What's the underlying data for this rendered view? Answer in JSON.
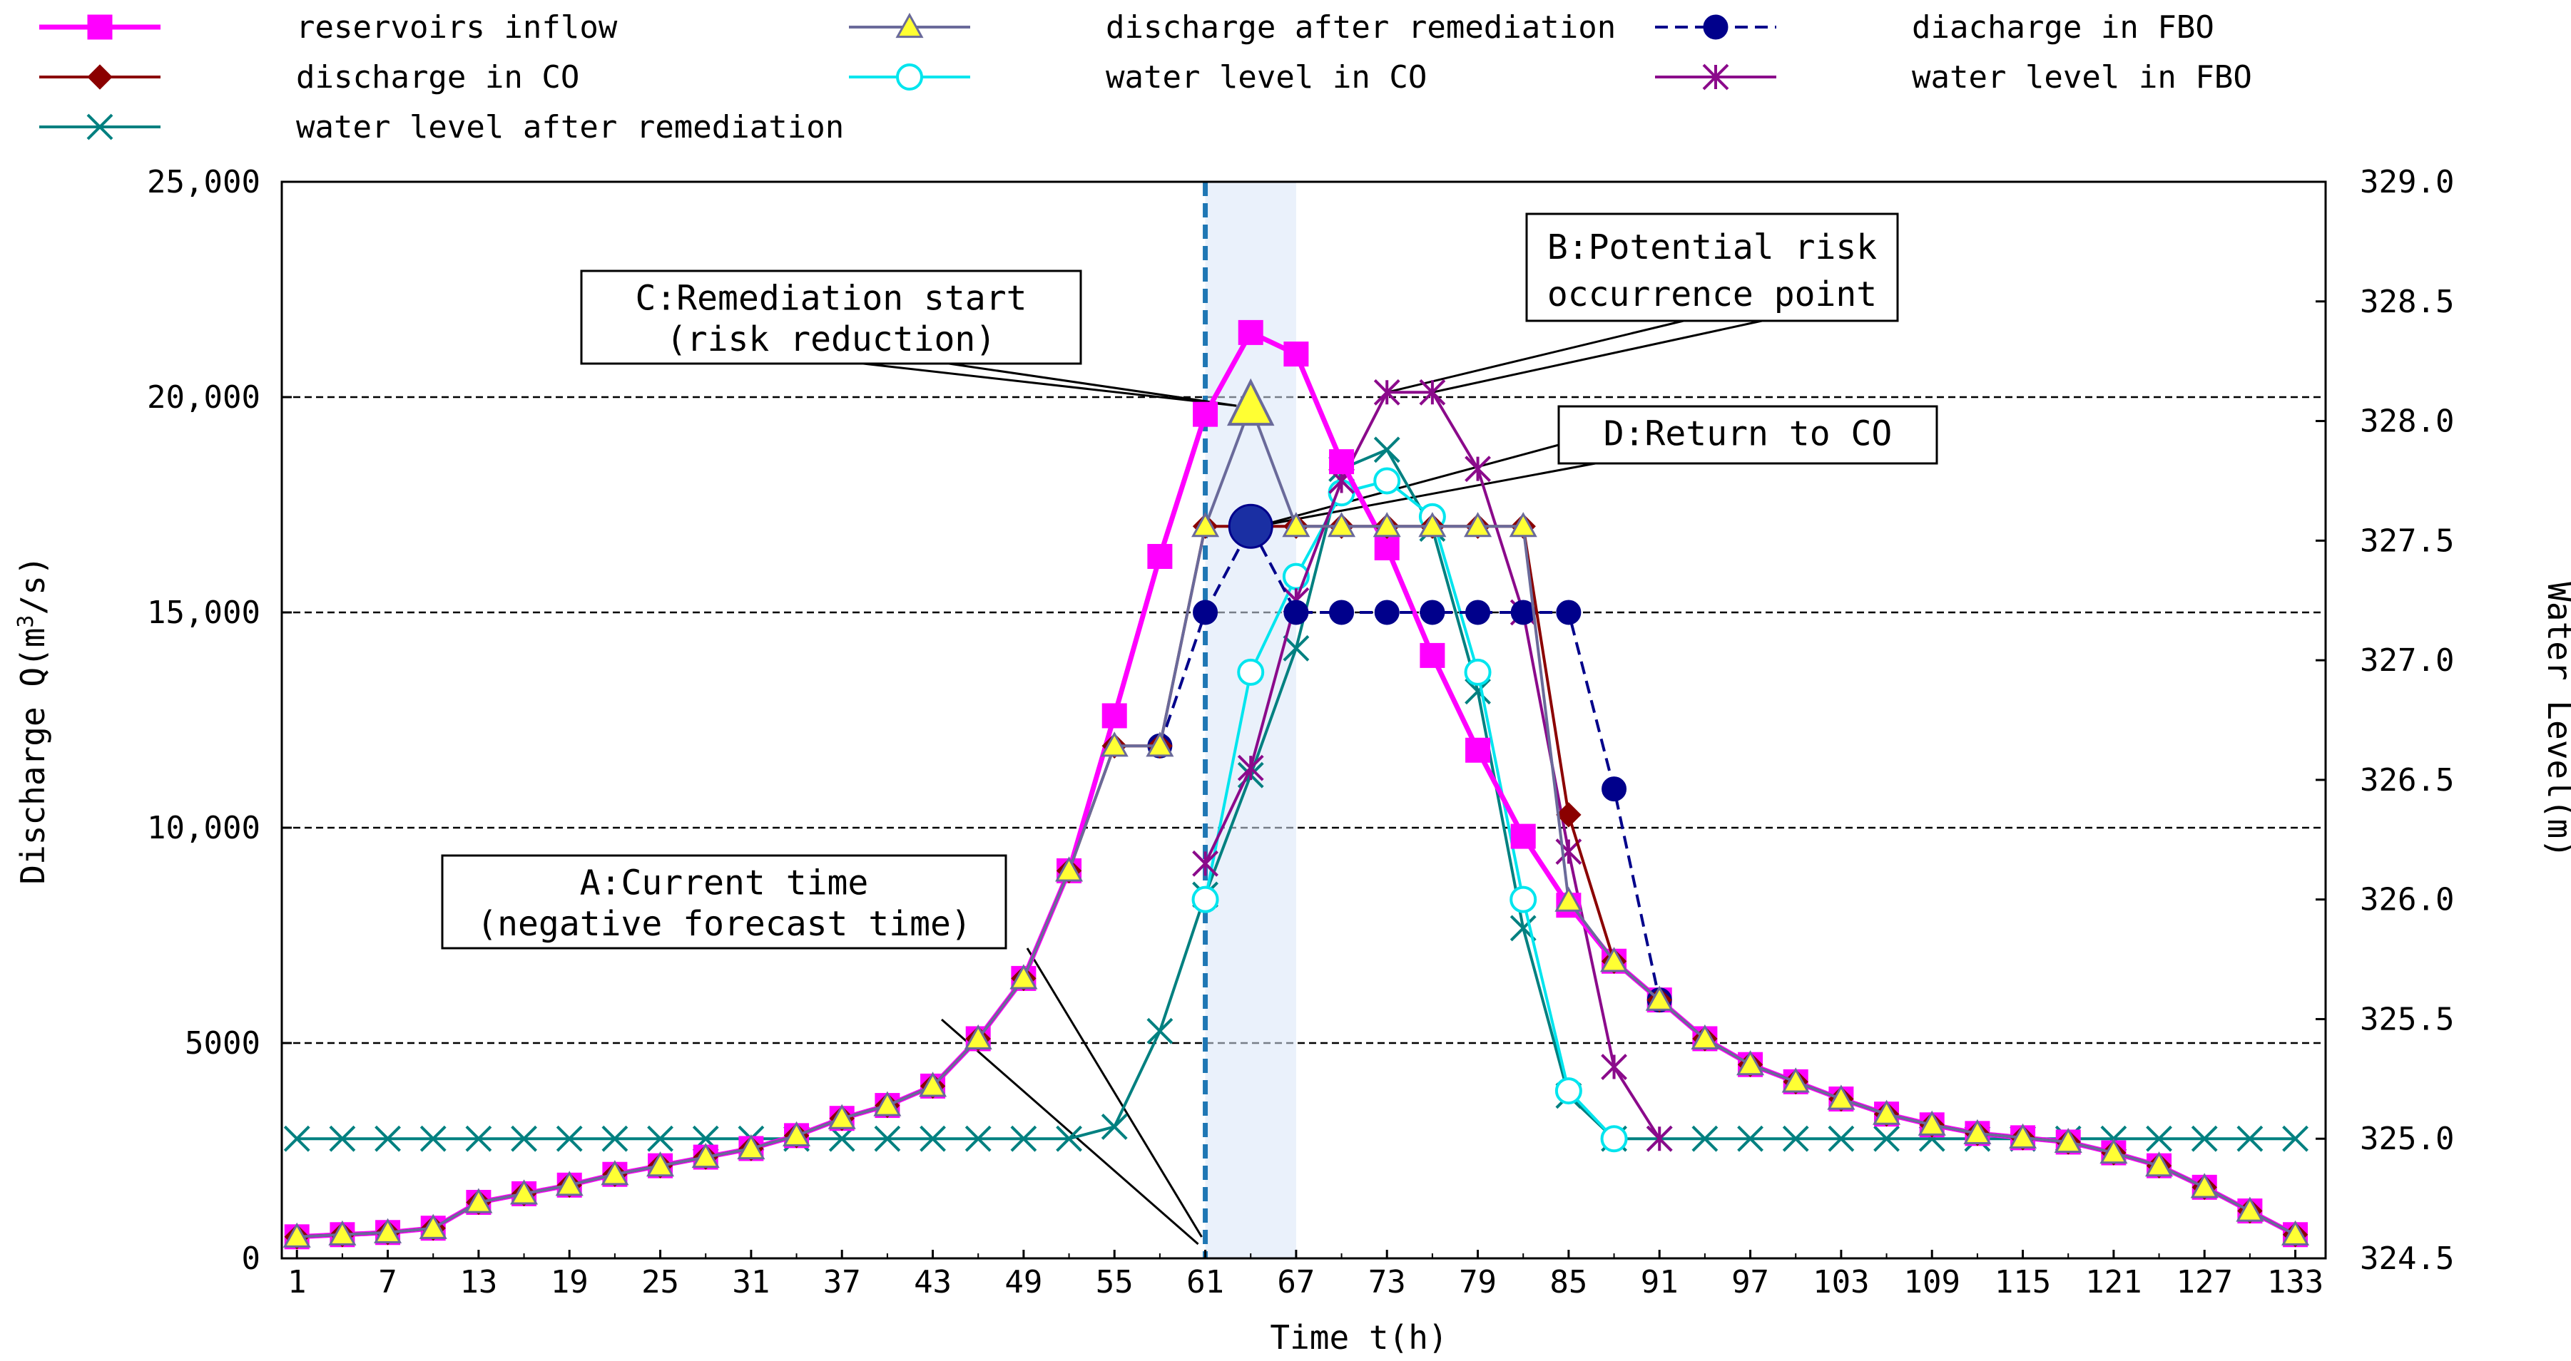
{
  "chart_data": {
    "type": "line",
    "title": "",
    "xlabel": "Time t(h)",
    "ylabel_left": "Discharge Q(m³/s)",
    "ylabel_right": "Water Level(m)",
    "xlim": [
      0,
      135
    ],
    "ylim_left": [
      0,
      25000
    ],
    "ylim_right": [
      324.5,
      329.0
    ],
    "x_ticks": [
      1,
      7,
      13,
      19,
      25,
      31,
      37,
      43,
      49,
      55,
      61,
      67,
      73,
      79,
      85,
      91,
      97,
      103,
      109,
      115,
      121,
      127,
      133
    ],
    "x_tick_labels": [
      "1",
      "7",
      "13",
      "19",
      "25",
      "31",
      "37",
      "43",
      "49",
      "55",
      "61",
      "67",
      "73",
      "79",
      "85",
      "91",
      "97",
      "103",
      "109",
      "115",
      "121",
      "127",
      "133"
    ],
    "y_left_ticks": [
      0,
      5000,
      10000,
      15000,
      20000,
      25000
    ],
    "y_left_tick_labels": [
      "0",
      "5000",
      "10,000",
      "15,000",
      "20,000",
      "25,000"
    ],
    "y_right_ticks": [
      324.5,
      325.0,
      325.5,
      326.0,
      326.5,
      327.0,
      327.5,
      328.0,
      328.5,
      329.0
    ],
    "y_right_tick_labels": [
      "324.5",
      "325.0",
      "325.5",
      "326.0",
      "326.5",
      "327.0",
      "327.5",
      "328.0",
      "328.5",
      "329.0"
    ],
    "gridlines_left": [
      5000,
      10000,
      15000,
      20000
    ],
    "current_time_x": 61,
    "shaded_band_x": [
      61,
      67
    ],
    "legend_position": "top",
    "series": [
      {
        "name": "reservoirs inflow",
        "axis": "left",
        "color": "#ff00ff",
        "marker": "square",
        "dash": "solid",
        "x": [
          1,
          4,
          7,
          10,
          13,
          16,
          19,
          22,
          25,
          28,
          31,
          34,
          37,
          40,
          43,
          46,
          49,
          52,
          55,
          58,
          61,
          64,
          67,
          70,
          73,
          76,
          79,
          82,
          85,
          88,
          91,
          94,
          97,
          100,
          103,
          106,
          109,
          112,
          115,
          118,
          121,
          124,
          127,
          130,
          133
        ],
        "values": [
          500,
          550,
          600,
          700,
          1300,
          1500,
          1700,
          1950,
          2150,
          2350,
          2550,
          2850,
          3250,
          3550,
          4000,
          5100,
          6500,
          9000,
          12600,
          16300,
          19600,
          21500,
          21000,
          18500,
          16500,
          14000,
          11800,
          9800,
          8200,
          6900,
          6000,
          5100,
          4500,
          4100,
          3700,
          3350,
          3100,
          2900,
          2800,
          2700,
          2450,
          2150,
          1650,
          1100,
          550
        ]
      },
      {
        "name": "discharge in CO",
        "axis": "left",
        "color": "#8b0000",
        "marker": "diamond",
        "dash": "solid",
        "x": [
          1,
          4,
          7,
          10,
          13,
          16,
          19,
          22,
          25,
          28,
          31,
          34,
          37,
          40,
          43,
          46,
          49,
          52,
          55,
          58,
          61,
          64,
          67,
          70,
          73,
          76,
          79,
          82,
          85,
          88,
          91,
          94,
          97,
          100,
          103,
          106,
          109,
          112,
          115,
          118,
          121,
          124,
          127,
          130,
          133
        ],
        "values": [
          500,
          550,
          600,
          700,
          1300,
          1500,
          1700,
          1950,
          2150,
          2350,
          2550,
          2850,
          3250,
          3550,
          4000,
          5100,
          6500,
          9000,
          11900,
          11900,
          17000,
          17000,
          17000,
          17000,
          17000,
          17000,
          17000,
          17000,
          10300,
          6900,
          6000,
          5100,
          4500,
          4100,
          3700,
          3350,
          3100,
          2900,
          2800,
          2700,
          2450,
          2150,
          1650,
          1100,
          550
        ]
      },
      {
        "name": "water level after remediation",
        "axis": "right",
        "color": "#008080",
        "marker": "x",
        "dash": "solid",
        "x": [
          1,
          4,
          7,
          10,
          13,
          16,
          19,
          22,
          25,
          28,
          31,
          34,
          37,
          40,
          43,
          46,
          49,
          52,
          55,
          58,
          61,
          64,
          67,
          70,
          73,
          76,
          79,
          82,
          85,
          88,
          91,
          94,
          97,
          100,
          103,
          106,
          109,
          112,
          115,
          118,
          121,
          124,
          127,
          130,
          133
        ],
        "values": [
          325.0,
          325.0,
          325.0,
          325.0,
          325.0,
          325.0,
          325.0,
          325.0,
          325.0,
          325.0,
          325.0,
          325.0,
          325.0,
          325.0,
          325.0,
          325.0,
          325.0,
          325.0,
          325.05,
          325.45,
          326.02,
          326.52,
          327.05,
          327.8,
          327.88,
          327.55,
          326.87,
          325.88,
          325.18,
          325.0,
          325.0,
          325.0,
          325.0,
          325.0,
          325.0,
          325.0,
          325.0,
          325.0,
          325.0,
          325.0,
          325.0,
          325.0,
          325.0,
          325.0,
          325.0
        ]
      },
      {
        "name": "discharge after remediation",
        "axis": "left",
        "color": "#6a6a9a",
        "marker": "triangle",
        "dash": "solid",
        "x": [
          1,
          4,
          7,
          10,
          13,
          16,
          19,
          22,
          25,
          28,
          31,
          34,
          37,
          40,
          43,
          46,
          49,
          52,
          55,
          58,
          61,
          64,
          67,
          70,
          73,
          76,
          79,
          82,
          85,
          88,
          91,
          94,
          97,
          100,
          103,
          106,
          109,
          112,
          115,
          118,
          121,
          124,
          127,
          130,
          133
        ],
        "values": [
          500,
          550,
          600,
          700,
          1300,
          1500,
          1700,
          1950,
          2150,
          2350,
          2550,
          2850,
          3250,
          3550,
          4000,
          5100,
          6500,
          9000,
          11900,
          11900,
          17000,
          19800,
          17000,
          17000,
          17000,
          17000,
          17000,
          17000,
          8300,
          6900,
          6000,
          5100,
          4500,
          4100,
          3700,
          3350,
          3100,
          2900,
          2800,
          2700,
          2450,
          2150,
          1650,
          1100,
          550
        ]
      },
      {
        "name": "water level in CO",
        "axis": "right",
        "color": "#00e5ee",
        "marker": "circle-open",
        "dash": "solid",
        "x": [
          61,
          64,
          67,
          70,
          73,
          76,
          79,
          82,
          85,
          88
        ],
        "values": [
          326.0,
          326.95,
          327.35,
          327.7,
          327.75,
          327.6,
          326.95,
          326.0,
          325.2,
          325.0
        ]
      },
      {
        "name": "diacharge in FBO",
        "axis": "left",
        "color": "#00008b",
        "marker": "circle",
        "dash": "dashed",
        "x": [
          58,
          61,
          64,
          67,
          70,
          73,
          76,
          79,
          82,
          85,
          88,
          91
        ],
        "values": [
          11900,
          15000,
          17000,
          15000,
          15000,
          15000,
          15000,
          15000,
          15000,
          15000,
          10900,
          6000
        ]
      },
      {
        "name": "water level in FBO",
        "axis": "right",
        "color": "#8b0a8b",
        "marker": "star",
        "dash": "solid",
        "x": [
          61,
          64,
          67,
          70,
          73,
          76,
          79,
          82,
          85,
          88,
          91
        ],
        "values": [
          326.15,
          326.55,
          327.25,
          327.75,
          328.12,
          328.12,
          327.8,
          327.2,
          326.2,
          325.3,
          325.0
        ]
      }
    ],
    "annotations": [
      {
        "id": "A",
        "line1": "A:Current time",
        "line2": "(negative forecast time)"
      },
      {
        "id": "B",
        "line1": "B:Potential risk",
        "line2": "occurrence point"
      },
      {
        "id": "C",
        "line1": "C:Remediation start",
        "line2": "(risk reduction)"
      },
      {
        "id": "D",
        "line1": "D:Return to CO",
        "line2": ""
      }
    ]
  }
}
